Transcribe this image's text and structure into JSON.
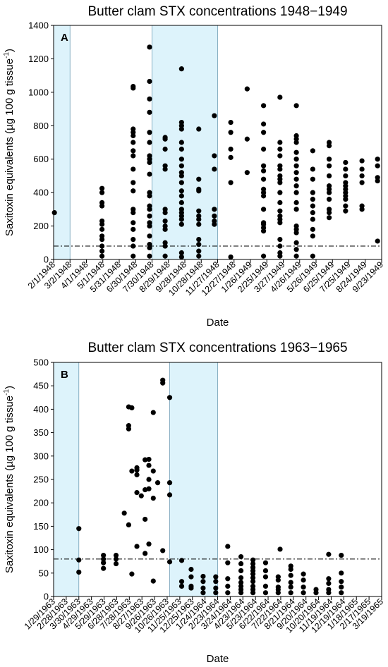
{
  "chart_data": [
    {
      "type": "scatter",
      "panel_label": "A",
      "title": "Butter clam STX concentrations 1948−1949",
      "xlabel": "Date",
      "ylabel_main": "Saxitoxin equivalents (µg 100 g tissue",
      "ylabel_sup": "-1",
      "ylabel_end": ")",
      "ylim": [
        0,
        1400
      ],
      "yticks": [
        0,
        200,
        400,
        600,
        800,
        1000,
        1200,
        1400
      ],
      "x_tick_labels": [
        "2/1/1948",
        "3/2/1948",
        "4/1/1948",
        "5/1/1948",
        "5/31/1948",
        "6/30/1948",
        "7/30/1948",
        "8/29/1948",
        "9/28/1948",
        "10/28/1948",
        "11/27/1948",
        "12/27/1948",
        "1/26/1949",
        "2/25/1949",
        "3/27/1949",
        "4/26/1949",
        "5/26/1949",
        "6/25/1949",
        "7/25/1949",
        "8/24/1949",
        "9/23/1949"
      ],
      "shaded_x_ranges": [
        [
          0,
          1
        ],
        [
          6,
          10
        ]
      ],
      "threshold_line": 80,
      "marker_color": "#000000",
      "shade_color": "#ddf3fb",
      "points": [
        {
          "x": 0.05,
          "y": [
            280
          ]
        },
        {
          "x": 2.95,
          "y": [
            425,
            400,
            340,
            320,
            230,
            210,
            180,
            140,
            120,
            80,
            50,
            20
          ]
        },
        {
          "x": 4.85,
          "y": [
            1035,
            1025,
            780,
            760,
            740,
            700,
            650,
            620,
            540,
            460,
            410,
            300,
            280,
            220,
            180,
            120,
            80,
            20
          ]
        },
        {
          "x": 5.85,
          "y": [
            1270,
            1065,
            960,
            880,
            760,
            700,
            620,
            600,
            580,
            510,
            400,
            380,
            320,
            300,
            260,
            220,
            200,
            140,
            90,
            70,
            20
          ]
        },
        {
          "x": 6.8,
          "y": [
            730,
            720,
            660,
            560,
            540,
            300,
            280,
            230,
            200,
            180,
            100,
            80,
            20
          ]
        },
        {
          "x": 7.8,
          "y": [
            1140,
            820,
            800,
            780,
            700,
            660,
            600,
            560,
            520,
            500,
            460,
            410,
            380,
            340,
            300,
            280,
            260,
            240,
            210,
            40,
            15
          ]
        },
        {
          "x": 8.85,
          "y": [
            780,
            480,
            420,
            410,
            290,
            260,
            240,
            210,
            120,
            90,
            50,
            20
          ]
        },
        {
          "x": 9.8,
          "y": [
            860,
            620,
            540,
            300,
            260,
            230,
            210
          ]
        },
        {
          "x": 10.8,
          "y": [
            820,
            760,
            660,
            610,
            460,
            15
          ]
        },
        {
          "x": 11.8,
          "y": [
            1020,
            720,
            520
          ]
        },
        {
          "x": 12.8,
          "y": [
            920,
            810,
            760,
            660,
            560,
            530,
            480,
            420,
            400,
            380,
            300,
            220,
            210,
            190,
            170,
            20
          ]
        },
        {
          "x": 13.8,
          "y": [
            970,
            700,
            660,
            620,
            560,
            540,
            500,
            480,
            460,
            400,
            340,
            290,
            260,
            240,
            220,
            120,
            80,
            40,
            20
          ]
        },
        {
          "x": 14.8,
          "y": [
            920,
            740,
            720,
            700,
            640,
            600,
            560,
            520,
            480,
            440,
            400,
            340,
            300,
            200,
            180,
            160,
            100,
            60,
            20
          ]
        },
        {
          "x": 15.8,
          "y": [
            650,
            540,
            480,
            400,
            360,
            320,
            280,
            240,
            180,
            140,
            20
          ]
        },
        {
          "x": 16.8,
          "y": [
            700,
            680,
            600,
            560,
            500,
            440,
            420,
            400,
            360,
            300,
            280,
            250
          ]
        },
        {
          "x": 17.8,
          "y": [
            580,
            540,
            500,
            460,
            440,
            420,
            400,
            380,
            360,
            320,
            290
          ]
        },
        {
          "x": 18.8,
          "y": [
            590,
            540,
            500,
            460,
            320,
            300
          ]
        },
        {
          "x": 19.75,
          "y": [
            600,
            560,
            490,
            470,
            110
          ]
        }
      ]
    },
    {
      "type": "scatter",
      "panel_label": "B",
      "title": "Butter clam STX concentrations 1963−1965",
      "xlabel": "Date",
      "ylabel_main": "Saxitoxin equivalents (µg 100 g tissue",
      "ylabel_sup": "-1",
      "ylabel_end": ")",
      "ylim": [
        0,
        500
      ],
      "yticks": [
        0,
        50,
        100,
        150,
        200,
        250,
        300,
        350,
        400,
        450,
        500
      ],
      "x_tick_labels": [
        "1/29/1963",
        "2/28/1963",
        "3/30/1963",
        "4/29/1963",
        "5/29/1963",
        "6/28/1963",
        "7/28/1963",
        "8/27/1963",
        "9/26/1963",
        "10/26/1963",
        "11/25/1963",
        "12/25/1963",
        "1/24/1964",
        "2/23/1964",
        "3/24/1964",
        "4/23/1964",
        "5/23/1964",
        "6/22/1964",
        "7/22/1964",
        "8/21/1964",
        "9/20/1964",
        "10/20/1964",
        "11/19/1964",
        "12/19/1964",
        "1/18/1965",
        "2/17/1965",
        "3/19/1965"
      ],
      "shaded_x_ranges": [
        [
          0,
          2
        ],
        [
          9.2,
          13
        ]
      ],
      "threshold_line": 80,
      "marker_color": "#000000",
      "shade_color": "#ddf3fb",
      "points": [
        {
          "x": 2.0,
          "y": [
            145,
            78,
            52
          ]
        },
        {
          "x": 3.95,
          "y": [
            88,
            80,
            72,
            60
          ]
        },
        {
          "x": 4.95,
          "y": [
            88,
            80,
            70
          ]
        },
        {
          "x": 5.6,
          "y": [
            178
          ]
        },
        {
          "x": 5.95,
          "y": [
            405,
            365,
            358,
            153
          ]
        },
        {
          "x": 6.2,
          "y": [
            403,
            268,
            48
          ]
        },
        {
          "x": 6.6,
          "y": [
            275,
            270,
            260,
            222,
            107
          ]
        },
        {
          "x": 6.95,
          "y": [
            215
          ]
        },
        {
          "x": 7.25,
          "y": [
            292,
            228,
            165,
            92
          ]
        },
        {
          "x": 7.55,
          "y": [
            293,
            280,
            250,
            230,
            112
          ]
        },
        {
          "x": 7.9,
          "y": [
            393,
            268,
            210,
            33
          ]
        },
        {
          "x": 8.25,
          "y": [
            243
          ]
        },
        {
          "x": 8.65,
          "y": [
            462,
            456,
            98
          ]
        },
        {
          "x": 9.2,
          "y": [
            425,
            243,
            217,
            74
          ]
        },
        {
          "x": 10.15,
          "y": [
            77,
            32,
            22
          ]
        },
        {
          "x": 10.9,
          "y": [
            58,
            42,
            22,
            18
          ]
        },
        {
          "x": 11.85,
          "y": [
            43,
            32,
            18,
            8
          ]
        },
        {
          "x": 12.85,
          "y": [
            42,
            32,
            18,
            8
          ]
        },
        {
          "x": 13.8,
          "y": [
            107,
            72,
            38,
            22,
            8
          ]
        },
        {
          "x": 14.85,
          "y": [
            85,
            70,
            55,
            40,
            30,
            22,
            15,
            8
          ]
        },
        {
          "x": 15.8,
          "y": [
            78,
            70,
            62,
            55,
            48,
            40,
            32,
            22,
            15,
            8
          ]
        },
        {
          "x": 16.8,
          "y": [
            72,
            55,
            42,
            22,
            8
          ]
        },
        {
          "x": 17.8,
          "y": [
            42,
            35,
            20,
            15,
            8
          ]
        },
        {
          "x": 17.95,
          "y": [
            101
          ]
        },
        {
          "x": 18.8,
          "y": [
            65,
            58,
            45,
            30,
            20,
            8
          ]
        },
        {
          "x": 19.8,
          "y": [
            48,
            35,
            20,
            8
          ]
        },
        {
          "x": 20.8,
          "y": [
            15,
            8
          ]
        },
        {
          "x": 21.8,
          "y": [
            90,
            38,
            28,
            15,
            8
          ]
        },
        {
          "x": 22.8,
          "y": [
            88,
            50,
            32,
            20,
            8
          ]
        }
      ]
    }
  ]
}
